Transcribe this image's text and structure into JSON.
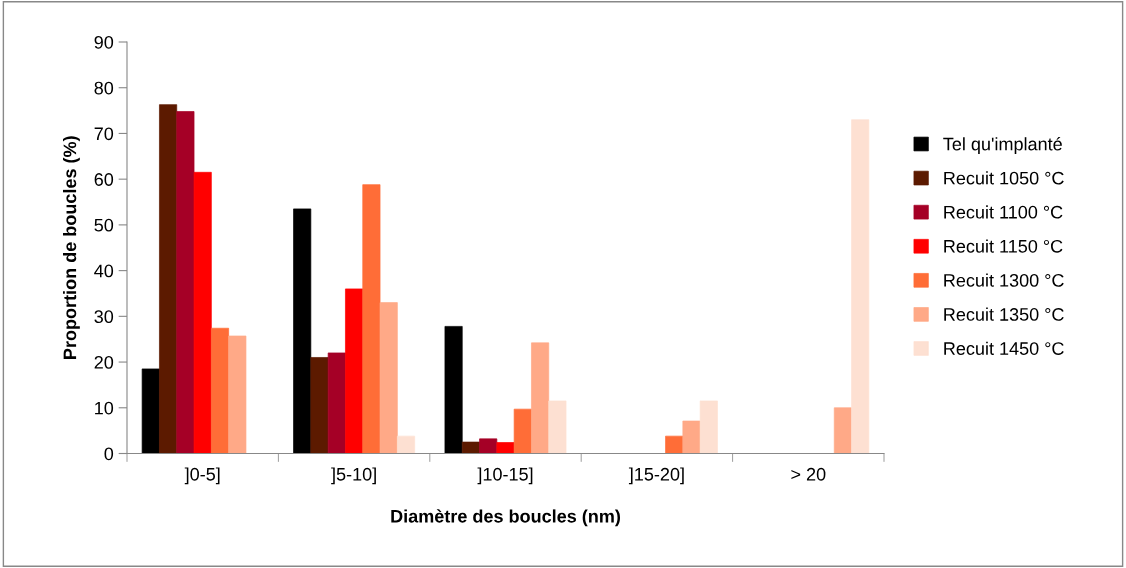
{
  "chart_data": {
    "type": "bar",
    "xlabel": "Diamètre des boucles (nm)",
    "ylabel": "Proportion de boucles (%)",
    "categories": [
      "]0-5]",
      "]5-10]",
      "]10-15]",
      "]15-20]",
      "> 20"
    ],
    "series": [
      {
        "name": "Tel qu'implanté",
        "color": "#000000",
        "values": [
          18.5,
          53.5,
          27.8,
          0,
          0
        ]
      },
      {
        "name": "Recuit 1050 °C",
        "color": "#5c1a00",
        "values": [
          76.3,
          21,
          2.5,
          0,
          0
        ]
      },
      {
        "name": "Recuit 1100 °C",
        "color": "#a50026",
        "values": [
          74.8,
          22,
          3.2,
          0,
          0
        ]
      },
      {
        "name": "Recuit 1150 °C",
        "color": "#ff0000",
        "values": [
          61.5,
          36,
          2.4,
          0,
          0
        ]
      },
      {
        "name": "Recuit 1300 °C",
        "color": "#ff6d37",
        "values": [
          27.4,
          58.8,
          9.7,
          3.8,
          0
        ]
      },
      {
        "name": "Recuit 1350 °C",
        "color": "#ffa987",
        "values": [
          25.7,
          33,
          24.2,
          7.1,
          10
        ]
      },
      {
        "name": "Recuit 1450 °C",
        "color": "#fde0d2",
        "values": [
          0,
          3.8,
          11.5,
          11.5,
          73
        ]
      }
    ],
    "ylim": [
      0,
      90
    ],
    "yticks": [
      0,
      10,
      20,
      30,
      40,
      50,
      60,
      70,
      80,
      90
    ],
    "grid": false,
    "legend": "right"
  }
}
